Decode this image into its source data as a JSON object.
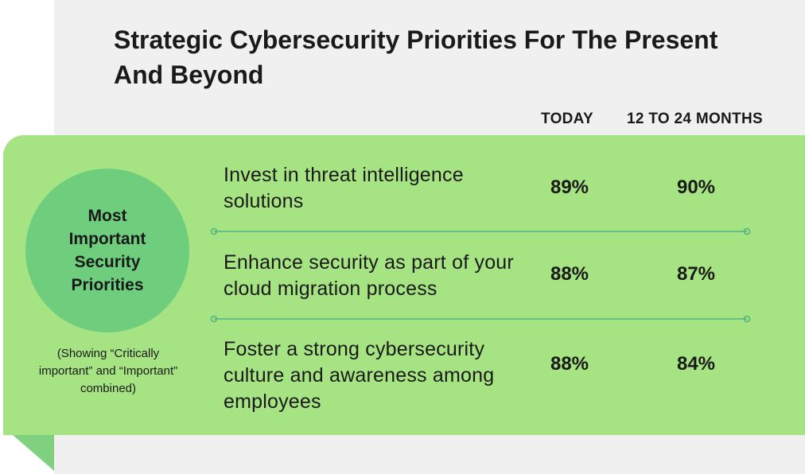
{
  "title": "Strategic Cybersecurity Priorities For The Present And Beyond",
  "colors": {
    "band": "#a6e383",
    "circle": "#6fce7e",
    "separator": "#4fb381",
    "background": "#f0f0f0"
  },
  "circle_label": "Most Important Security Priorities",
  "note": "(Showing “Critically important” and “Important” combined)",
  "chart_data": {
    "type": "table",
    "title": "Strategic Cybersecurity Priorities For The Present And Beyond",
    "columns": [
      "TODAY",
      "12 TO 24 MONTHS"
    ],
    "rows": [
      {
        "label": "Invest in threat intelligence solutions",
        "today": "89%",
        "future": "90%",
        "today_value": 89,
        "future_value": 90
      },
      {
        "label": "Enhance security as part of your cloud migration process",
        "today": "88%",
        "future": "87%",
        "today_value": 88,
        "future_value": 87
      },
      {
        "label": "Foster a strong cybersecurity culture and awareness among employees",
        "today": "88%",
        "future": "84%",
        "today_value": 88,
        "future_value": 84
      }
    ]
  }
}
